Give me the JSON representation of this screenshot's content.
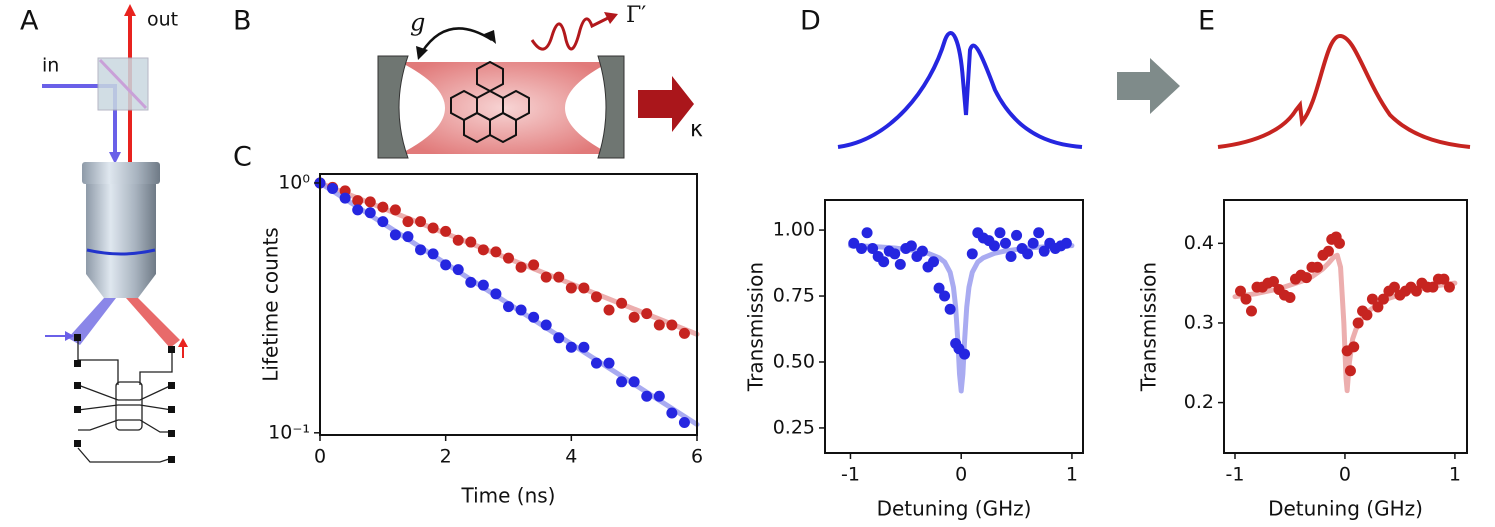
{
  "panel_labels": [
    "A",
    "B",
    "C",
    "D",
    "E"
  ],
  "diagram": {
    "input": "in",
    "output": "out",
    "coupling": "g",
    "loss": "Γ′",
    "decay": "κ"
  },
  "chart_data": [
    {
      "type": "scatter",
      "xlabel": "Time (ns)",
      "ylabel": "Lifetime counts",
      "log_y": true,
      "xlim": [
        0,
        6
      ],
      "ylim": [
        0.098,
        1.086
      ],
      "xticks": [
        0,
        2,
        4,
        6
      ],
      "yticks": [
        {
          "value": 1,
          "label": "10⁰"
        },
        {
          "value": 0.1,
          "label": "10⁻¹"
        }
      ],
      "series": [
        {
          "mode": "line",
          "color": "#e9a0a0",
          "x": [
            0,
            6
          ],
          "values": [
            1.0,
            0.248
          ]
        },
        {
          "mode": "line",
          "color": "#9a9cef",
          "x": [
            0,
            6
          ],
          "values": [
            1.0,
            0.108
          ]
        },
        {
          "mode": "markers",
          "color": "#c62420",
          "x": [
            0,
            0.2,
            0.4,
            0.6,
            0.8,
            1.0,
            1.2,
            1.4,
            1.6,
            1.8,
            2.0,
            2.2,
            2.4,
            2.6,
            2.8,
            3.0,
            3.2,
            3.4,
            3.6,
            3.8,
            4.0,
            4.2,
            4.4,
            4.6,
            4.8,
            5.0,
            5.2,
            5.4,
            5.6,
            5.8
          ],
          "values": [
            1.0,
            0.96,
            0.93,
            0.85,
            0.84,
            0.8,
            0.78,
            0.7,
            0.7,
            0.66,
            0.64,
            0.59,
            0.58,
            0.54,
            0.53,
            0.5,
            0.46,
            0.47,
            0.42,
            0.42,
            0.38,
            0.38,
            0.35,
            0.31,
            0.33,
            0.29,
            0.3,
            0.27,
            0.27,
            0.25
          ]
        },
        {
          "mode": "markers",
          "color": "#2526e0",
          "x": [
            0,
            0.2,
            0.4,
            0.6,
            0.8,
            1.0,
            1.2,
            1.4,
            1.6,
            1.8,
            2.0,
            2.2,
            2.4,
            2.6,
            2.8,
            3.0,
            3.2,
            3.4,
            3.6,
            3.8,
            4.0,
            4.2,
            4.4,
            4.6,
            4.8,
            5.0,
            5.2,
            5.4,
            5.6,
            5.8
          ],
          "values": [
            1.0,
            0.95,
            0.87,
            0.78,
            0.76,
            0.7,
            0.62,
            0.61,
            0.54,
            0.52,
            0.47,
            0.45,
            0.4,
            0.39,
            0.36,
            0.32,
            0.31,
            0.29,
            0.27,
            0.24,
            0.22,
            0.22,
            0.19,
            0.19,
            0.16,
            0.16,
            0.14,
            0.14,
            0.12,
            0.11
          ]
        }
      ]
    },
    {
      "type": "scatter",
      "xlabel": "Detuning (GHz)",
      "ylabel": "Transmission",
      "xlim": [
        -1.23,
        1.1
      ],
      "ylim": [
        0.155,
        1.114
      ],
      "xticks": [
        -1,
        0,
        1
      ],
      "yticks": [
        {
          "value": 1,
          "label": "1.00"
        },
        0.75,
        {
          "value": 0.5,
          "label": "0.50"
        },
        0.25
      ],
      "series": [
        {
          "mode": "line",
          "color": "#9a9cef",
          "x": [
            -1,
            -0.8,
            -0.6,
            -0.4,
            -0.3,
            -0.2,
            -0.15,
            -0.1,
            -0.07,
            -0.05,
            -0.03,
            -0.015,
            0,
            0.015,
            0.03,
            0.05,
            0.07,
            0.1,
            0.15,
            0.2,
            0.3,
            0.4,
            0.6,
            0.8,
            1
          ],
          "values": [
            0.941,
            0.938,
            0.932,
            0.921,
            0.912,
            0.895,
            0.879,
            0.84,
            0.783,
            0.708,
            0.577,
            0.454,
            0.39,
            0.454,
            0.577,
            0.708,
            0.783,
            0.84,
            0.879,
            0.895,
            0.912,
            0.921,
            0.932,
            0.938,
            0.941
          ]
        },
        {
          "mode": "markers",
          "color": "#2526e0",
          "x": [
            -0.97,
            -0.9,
            -0.85,
            -0.8,
            -0.75,
            -0.7,
            -0.65,
            -0.6,
            -0.55,
            -0.5,
            -0.45,
            -0.4,
            -0.35,
            -0.3,
            -0.25,
            -0.2,
            -0.15,
            -0.1,
            -0.05,
            -0.02,
            0.03,
            0.1,
            0.15,
            0.2,
            0.25,
            0.3,
            0.35,
            0.4,
            0.45,
            0.5,
            0.55,
            0.6,
            0.65,
            0.7,
            0.75,
            0.8,
            0.85,
            0.9,
            0.95
          ],
          "values": [
            0.95,
            0.93,
            0.99,
            0.93,
            0.9,
            0.88,
            0.92,
            0.91,
            0.87,
            0.93,
            0.94,
            0.9,
            0.92,
            0.86,
            0.88,
            0.78,
            0.75,
            0.7,
            0.57,
            0.55,
            0.53,
            0.91,
            0.99,
            0.97,
            0.96,
            0.94,
            0.99,
            0.95,
            0.9,
            0.98,
            0.93,
            0.91,
            0.95,
            0.99,
            0.92,
            0.95,
            0.93,
            0.94,
            0.95
          ]
        }
      ]
    },
    {
      "type": "scatter",
      "xlabel": "Detuning (GHz)",
      "ylabel": "Transmission",
      "xlim": [
        -1.1,
        1.11
      ],
      "ylim": [
        0.1367,
        0.4544
      ],
      "xticks": [
        -1,
        0,
        1
      ],
      "yticks": [
        0.4,
        0.3,
        0.2
      ],
      "series": [
        {
          "mode": "line",
          "color": "#e9a0a0",
          "x": [
            -1,
            -0.8,
            -0.6,
            -0.4,
            -0.3,
            -0.2,
            -0.15,
            -0.1,
            -0.07,
            -0.04,
            -0.01,
            0.01,
            0.02,
            0.04,
            0.07,
            0.1,
            0.15,
            0.2,
            0.3,
            0.4,
            0.6,
            0.8,
            1
          ],
          "values": [
            0.333,
            0.337,
            0.343,
            0.352,
            0.358,
            0.368,
            0.375,
            0.383,
            0.385,
            0.37,
            0.3,
            0.23,
            0.215,
            0.25,
            0.28,
            0.292,
            0.305,
            0.313,
            0.324,
            0.331,
            0.34,
            0.346,
            0.35
          ]
        },
        {
          "mode": "markers",
          "color": "#c62420",
          "x": [
            -0.95,
            -0.9,
            -0.85,
            -0.8,
            -0.75,
            -0.7,
            -0.65,
            -0.6,
            -0.55,
            -0.5,
            -0.45,
            -0.4,
            -0.35,
            -0.3,
            -0.25,
            -0.2,
            -0.15,
            -0.12,
            -0.08,
            -0.05,
            0.02,
            0.05,
            0.08,
            0.12,
            0.16,
            0.2,
            0.25,
            0.3,
            0.35,
            0.4,
            0.45,
            0.5,
            0.55,
            0.6,
            0.65,
            0.7,
            0.75,
            0.8,
            0.85,
            0.9,
            0.95
          ],
          "values": [
            0.34,
            0.33,
            0.315,
            0.345,
            0.345,
            0.35,
            0.352,
            0.342,
            0.335,
            0.332,
            0.355,
            0.36,
            0.357,
            0.37,
            0.37,
            0.385,
            0.39,
            0.405,
            0.408,
            0.4,
            0.265,
            0.24,
            0.27,
            0.3,
            0.315,
            0.31,
            0.33,
            0.32,
            0.33,
            0.34,
            0.345,
            0.335,
            0.34,
            0.345,
            0.34,
            0.35,
            0.345,
            0.345,
            0.355,
            0.355,
            0.345
          ]
        }
      ]
    }
  ]
}
